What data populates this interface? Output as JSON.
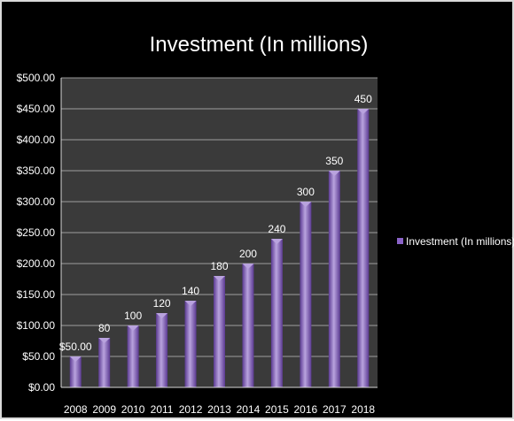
{
  "chart_data": {
    "type": "bar",
    "title": "Investment (In millions)",
    "xlabel": "",
    "ylabel": "",
    "categories": [
      "2008",
      "2009",
      "2010",
      "2011",
      "2012",
      "2013",
      "2014",
      "2015",
      "2016",
      "2017",
      "2018"
    ],
    "series": [
      {
        "name": "Investment (In millions)",
        "values": [
          50,
          80,
          100,
          120,
          140,
          180,
          200,
          240,
          300,
          350,
          450
        ],
        "data_labels": [
          "$50.00",
          "80",
          "100",
          "120",
          "140",
          "180",
          "200",
          "240",
          "300",
          "350",
          "450"
        ]
      }
    ],
    "ylim": [
      0,
      500
    ],
    "y_tick_labels": [
      "$0.00",
      "$50.00",
      "$100.00",
      "$150.00",
      "$200.00",
      "$250.00",
      "$300.00",
      "$350.00",
      "$400.00",
      "$450.00",
      "$500.00"
    ],
    "grid": true,
    "legend_position": "right",
    "colors": {
      "background": "#000000",
      "plot_area": "#3a3a3a",
      "bar_light": "#b9a3de",
      "bar_mid": "#8a63c8",
      "bar_dark": "#5b3a92",
      "gridline": "#bfbfbf",
      "text": "#ffffff"
    }
  }
}
